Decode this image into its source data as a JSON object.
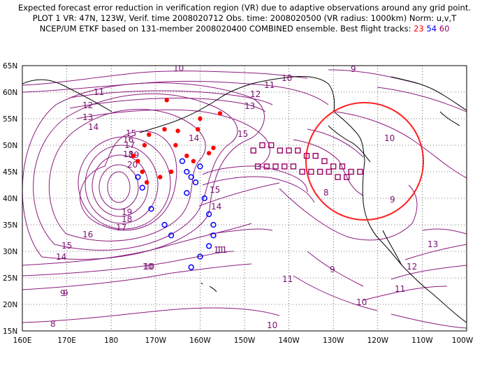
{
  "header": {
    "line1": "Expected forecast error reduction in verification region (VR) due to adaptive observations around any grid point.",
    "line2": "PLOT 1 VR: 47N, 123W, Verif. time 2008020712 Obs. time: 2008020500 (VR radius: 1000km) Norm: u,v,T",
    "line3_prefix": "NCEP/UM ETKF based on 131-member 2008020400 COMBINED ensemble.  Best flight tracks:",
    "track_red": "23",
    "track_blue": "54",
    "track_purple": "60"
  },
  "map": {
    "lat_labels": [
      "65N",
      "60N",
      "55N",
      "50N",
      "45N",
      "40N",
      "35N",
      "30N",
      "25N",
      "20N",
      "15N"
    ],
    "lon_labels": [
      "160E",
      "170E",
      "180",
      "170W",
      "160W",
      "150W",
      "140W",
      "130W",
      "120W",
      "110W",
      "100W"
    ],
    "contour_labels": [
      "10",
      "9",
      "10",
      "11",
      "11",
      "12",
      "12",
      "13",
      "13",
      "14",
      "14",
      "15",
      "15",
      "15",
      "16",
      "16",
      "17",
      "17",
      "18",
      "18",
      "19",
      "19",
      "20",
      "14",
      "15",
      "14",
      "11",
      "10",
      "9",
      "10",
      "9",
      "8",
      "9",
      "10",
      "11",
      "13",
      "12",
      "11",
      "11",
      "10",
      "10",
      "9",
      "8"
    ],
    "colors": {
      "contour": "#8b1a7e",
      "red_track": "#ff0000",
      "blue_track": "#0000ff",
      "purple_track": "#990066",
      "verification_circle": "#ff2020"
    }
  },
  "tracks": {
    "red": [
      [
        -167.5,
        58.5
      ],
      [
        -160,
        55
      ],
      [
        -155.5,
        56
      ],
      [
        -168,
        53
      ],
      [
        -165,
        52.7
      ],
      [
        -160.5,
        53
      ],
      [
        -171.5,
        52
      ],
      [
        -172.5,
        50
      ],
      [
        -165.5,
        50
      ],
      [
        -163,
        48
      ],
      [
        -157,
        49.5
      ],
      [
        -161.5,
        47
      ],
      [
        -158,
        48.5
      ],
      [
        -166.5,
        45
      ],
      [
        -169,
        44
      ],
      [
        -173,
        45
      ],
      [
        -174,
        47
      ],
      [
        -172,
        43
      ],
      [
        -175,
        48
      ]
    ],
    "blue": [
      [
        -174,
        44
      ],
      [
        -173,
        42
      ],
      [
        -171,
        38
      ],
      [
        -168,
        35
      ],
      [
        -166.5,
        33
      ],
      [
        -162,
        27
      ],
      [
        -160,
        29
      ],
      [
        -158,
        31
      ],
      [
        -157,
        33
      ],
      [
        -157,
        35
      ],
      [
        -158,
        37
      ],
      [
        -159,
        40
      ],
      [
        -162,
        44
      ],
      [
        -163,
        45
      ],
      [
        -160,
        46
      ],
      [
        -163,
        41
      ],
      [
        -161,
        43
      ],
      [
        -164,
        47
      ]
    ],
    "purple": [
      [
        -148,
        49
      ],
      [
        -146,
        50
      ],
      [
        -144,
        50
      ],
      [
        -142,
        49
      ],
      [
        -140,
        49
      ],
      [
        -138,
        49
      ],
      [
        -136,
        48
      ],
      [
        -134,
        48
      ],
      [
        -132,
        47
      ],
      [
        -130,
        46
      ],
      [
        -128,
        46
      ],
      [
        -126,
        45
      ],
      [
        -124,
        45
      ],
      [
        -147,
        46
      ],
      [
        -145,
        46
      ],
      [
        -143,
        46
      ],
      [
        -141,
        46
      ],
      [
        -139,
        46
      ],
      [
        -137,
        45
      ],
      [
        -135,
        45
      ],
      [
        -133,
        45
      ],
      [
        -131,
        45
      ],
      [
        -129,
        44
      ],
      [
        -127,
        44
      ]
    ]
  },
  "verification_region": {
    "center": {
      "lat": 47,
      "lon": -123
    },
    "radius_km": 1000
  }
}
